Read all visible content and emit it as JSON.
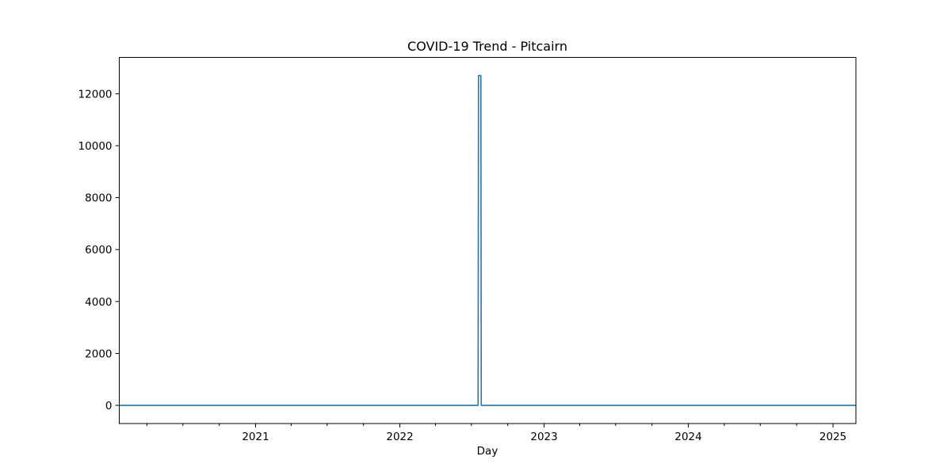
{
  "chart_data": {
    "type": "line",
    "title": "COVID-19 Trend - Pitcairn",
    "xlabel": "Day",
    "ylabel": "",
    "x_axis_type": "date",
    "xlim": [
      "2020-01-22",
      "2025-02-28"
    ],
    "ylim": [
      -700,
      13400
    ],
    "y_ticks": [
      0,
      2000,
      4000,
      6000,
      8000,
      10000,
      12000
    ],
    "x_ticks": [
      {
        "date": "2021-01-01",
        "label": "2021"
      },
      {
        "date": "2022-01-01",
        "label": "2022"
      },
      {
        "date": "2023-01-01",
        "label": "2023"
      },
      {
        "date": "2024-01-01",
        "label": "2024"
      },
      {
        "date": "2025-01-01",
        "label": "2025"
      }
    ],
    "grid": false,
    "legend": "none",
    "series": [
      {
        "color": "#1f77b4",
        "points": [
          {
            "x": "2020-01-22",
            "y": 0
          },
          {
            "x": "2022-07-18",
            "y": 0
          },
          {
            "x": "2022-07-19",
            "y": 12700
          },
          {
            "x": "2022-07-25",
            "y": 12700
          },
          {
            "x": "2022-07-26",
            "y": 0
          },
          {
            "x": "2025-02-28",
            "y": 0
          }
        ]
      }
    ]
  }
}
